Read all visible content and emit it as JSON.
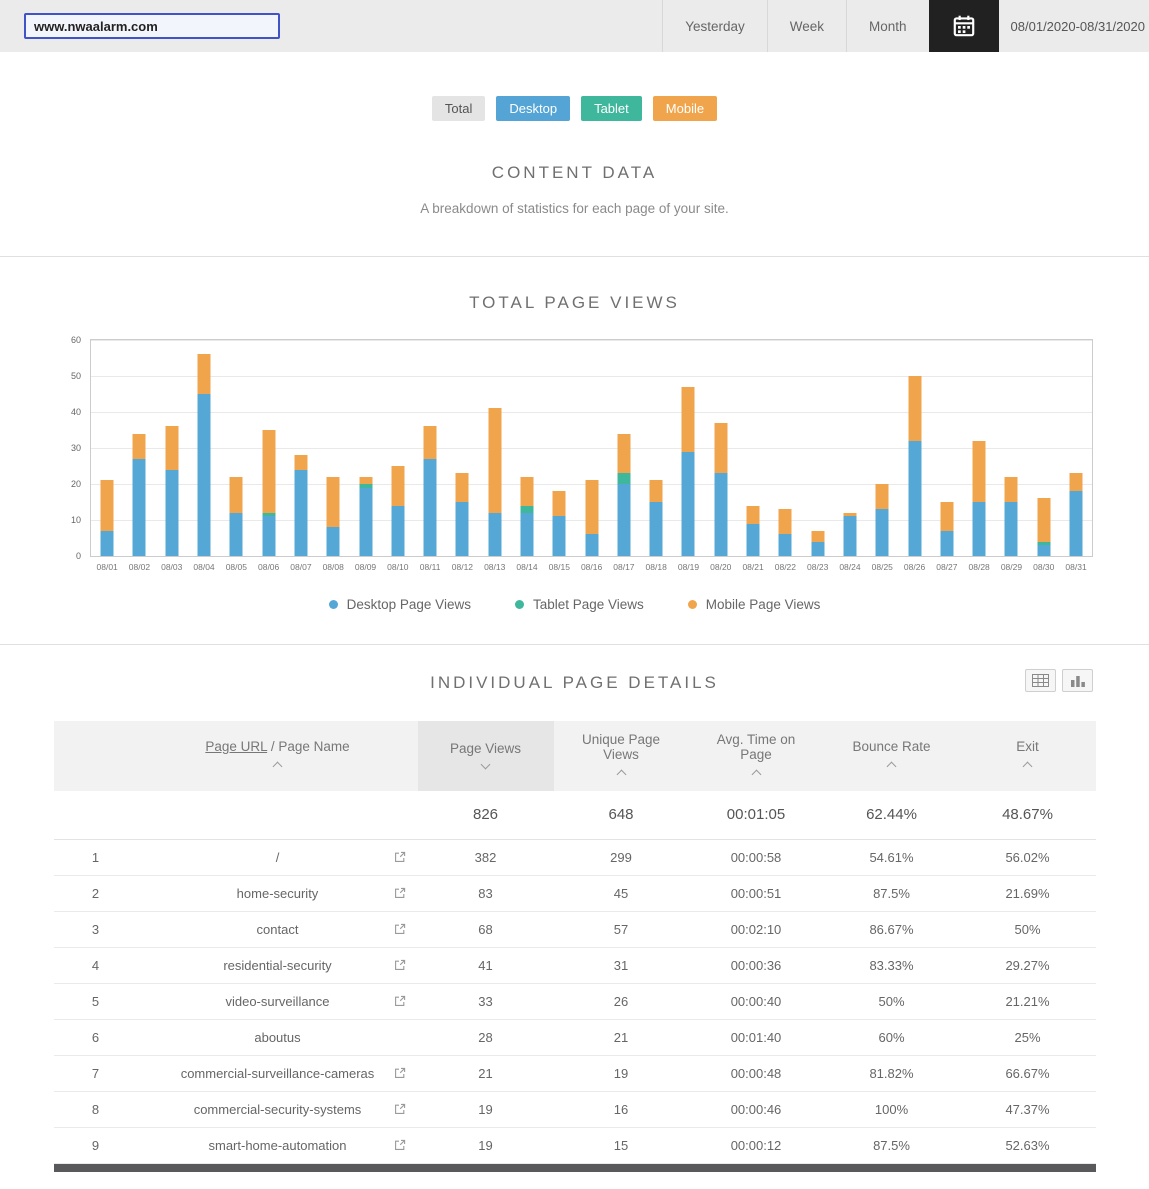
{
  "header": {
    "url_value": "www.nwaalarm.com",
    "range_buttons": [
      "Yesterday",
      "Week",
      "Month"
    ],
    "date_range": "08/01/2020-08/31/2020"
  },
  "filters": [
    {
      "label": "Total",
      "color": "#e4e4e4",
      "text_color": "#555555"
    },
    {
      "label": "Desktop",
      "color": "#54a4d6",
      "text_color": "#ffffff"
    },
    {
      "label": "Tablet",
      "color": "#3fb79c",
      "text_color": "#ffffff"
    },
    {
      "label": "Mobile",
      "color": "#f0a54c",
      "text_color": "#ffffff"
    }
  ],
  "content_section": {
    "title": "CONTENT DATA",
    "subtitle": "A breakdown of statistics for each page of your site."
  },
  "chart_section": {
    "title": "TOTAL PAGE VIEWS"
  },
  "chart_data": {
    "type": "bar",
    "stacked": true,
    "title": "TOTAL PAGE VIEWS",
    "xlabel": "",
    "ylabel": "",
    "ylim": [
      0,
      60
    ],
    "yticks": [
      0,
      10,
      20,
      30,
      40,
      50,
      60
    ],
    "grid": true,
    "legend_position": "bottom",
    "categories": [
      "08/01",
      "08/02",
      "08/03",
      "08/04",
      "08/05",
      "08/06",
      "08/07",
      "08/08",
      "08/09",
      "08/10",
      "08/11",
      "08/12",
      "08/13",
      "08/14",
      "08/15",
      "08/16",
      "08/17",
      "08/18",
      "08/19",
      "08/20",
      "08/21",
      "08/22",
      "08/23",
      "08/24",
      "08/25",
      "08/26",
      "08/27",
      "08/28",
      "08/29",
      "08/30",
      "08/31"
    ],
    "series": [
      {
        "name": "Desktop Page Views",
        "color": "#55a8d6",
        "values": [
          7,
          27,
          24,
          45,
          12,
          11,
          24,
          8,
          19,
          14,
          27,
          15,
          12,
          12,
          11,
          6,
          20,
          15,
          29,
          23,
          9,
          6,
          4,
          11,
          13,
          32,
          7,
          15,
          15,
          3,
          18
        ]
      },
      {
        "name": "Tablet Page Views",
        "color": "#3fb79c",
        "values": [
          0,
          0,
          0,
          0,
          0,
          1,
          0,
          0,
          1,
          0,
          0,
          0,
          0,
          2,
          0,
          0,
          3,
          0,
          0,
          0,
          0,
          0,
          0,
          0,
          0,
          0,
          0,
          0,
          0,
          1,
          0
        ]
      },
      {
        "name": "Mobile Page Views",
        "color": "#f0a54c",
        "values": [
          14,
          7,
          12,
          11,
          10,
          23,
          4,
          14,
          2,
          11,
          9,
          8,
          29,
          8,
          7,
          15,
          11,
          6,
          18,
          14,
          5,
          7,
          3,
          1,
          7,
          18,
          8,
          17,
          7,
          12,
          5
        ]
      }
    ]
  },
  "table_section": {
    "title": "INDIVIDUAL PAGE DETAILS",
    "headers": {
      "page_url_link": "Page URL",
      "page_name_rest": " / Page Name",
      "page_views": "Page Views",
      "unique_page_views": "Unique Page Views",
      "avg_time": "Avg. Time on Page",
      "bounce_rate": "Bounce Rate",
      "exit": "Exit"
    },
    "summary": {
      "page_views": "826",
      "unique_page_views": "648",
      "avg_time": "00:01:05",
      "bounce_rate": "62.44%",
      "exit": "48.67%"
    },
    "rows": [
      {
        "num": "1",
        "name": "/",
        "external": true,
        "views": "382",
        "unique": "299",
        "time": "00:00:58",
        "bounce": "54.61%",
        "exit": "56.02%"
      },
      {
        "num": "2",
        "name": "home-security",
        "external": true,
        "views": "83",
        "unique": "45",
        "time": "00:00:51",
        "bounce": "87.5%",
        "exit": "21.69%"
      },
      {
        "num": "3",
        "name": "contact",
        "external": true,
        "views": "68",
        "unique": "57",
        "time": "00:02:10",
        "bounce": "86.67%",
        "exit": "50%"
      },
      {
        "num": "4",
        "name": "residential-security",
        "external": true,
        "views": "41",
        "unique": "31",
        "time": "00:00:36",
        "bounce": "83.33%",
        "exit": "29.27%"
      },
      {
        "num": "5",
        "name": "video-surveillance",
        "external": true,
        "views": "33",
        "unique": "26",
        "time": "00:00:40",
        "bounce": "50%",
        "exit": "21.21%"
      },
      {
        "num": "6",
        "name": "aboutus",
        "external": false,
        "views": "28",
        "unique": "21",
        "time": "00:01:40",
        "bounce": "60%",
        "exit": "25%"
      },
      {
        "num": "7",
        "name": "commercial-surveillance-cameras",
        "external": true,
        "views": "21",
        "unique": "19",
        "time": "00:00:48",
        "bounce": "81.82%",
        "exit": "66.67%"
      },
      {
        "num": "8",
        "name": "commercial-security-systems",
        "external": true,
        "views": "19",
        "unique": "16",
        "time": "00:00:46",
        "bounce": "100%",
        "exit": "47.37%"
      },
      {
        "num": "9",
        "name": "smart-home-automation",
        "external": true,
        "views": "19",
        "unique": "15",
        "time": "00:00:12",
        "bounce": "87.5%",
        "exit": "52.63%"
      }
    ]
  }
}
